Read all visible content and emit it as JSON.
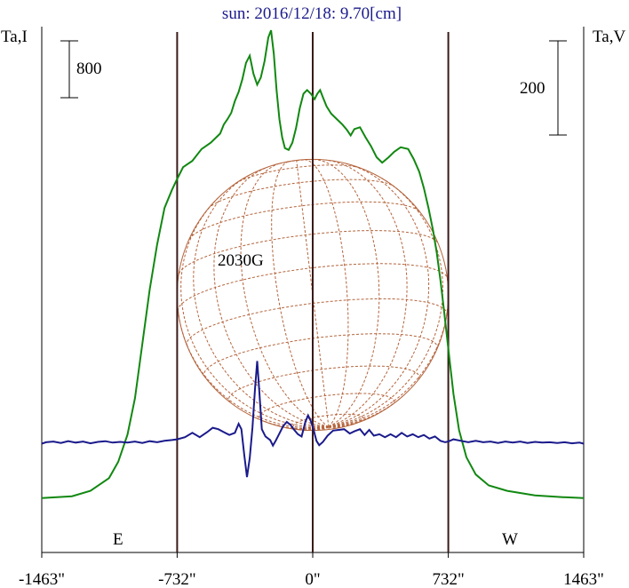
{
  "chart_data": {
    "type": "line",
    "title": "sun: 2016/12/18: 9.70[cm]",
    "left_axis_label": "Ta,I",
    "right_axis_label": "Ta,V",
    "left_scale_bar_label": "800",
    "right_scale_bar_label": "200",
    "annotation": "2030G",
    "east_label": "E",
    "west_label": "W",
    "xlim": [
      -1463,
      1463
    ],
    "x_ticks": [
      {
        "value": -1463,
        "label": "-1463\""
      },
      {
        "value": -732,
        "label": "-732\""
      },
      {
        "value": 0,
        "label": "0\""
      },
      {
        "value": 732,
        "label": "732\""
      },
      {
        "value": 1463,
        "label": "1463\""
      }
    ],
    "limb_markers": [
      -732,
      0,
      732
    ],
    "solar_radius_arcsec": 732,
    "grid": false,
    "series": [
      {
        "axis": "left",
        "color": "#118811",
        "ylim": [
          -600,
          5200
        ],
        "points": [
          [
            -1463,
            0
          ],
          [
            -1300,
            20
          ],
          [
            -1200,
            80
          ],
          [
            -1100,
            220
          ],
          [
            -1050,
            400
          ],
          [
            -1000,
            700
          ],
          [
            -960,
            1100
          ],
          [
            -920,
            1700
          ],
          [
            -880,
            2300
          ],
          [
            -840,
            2800
          ],
          [
            -800,
            3200
          ],
          [
            -760,
            3400
          ],
          [
            -732,
            3520
          ],
          [
            -700,
            3650
          ],
          [
            -650,
            3720
          ],
          [
            -600,
            3850
          ],
          [
            -550,
            3920
          ],
          [
            -500,
            4020
          ],
          [
            -480,
            4120
          ],
          [
            -460,
            4180
          ],
          [
            -440,
            4250
          ],
          [
            -420,
            4380
          ],
          [
            -400,
            4480
          ],
          [
            -380,
            4620
          ],
          [
            -360,
            4800
          ],
          [
            -340,
            4880
          ],
          [
            -320,
            4680
          ],
          [
            -300,
            4560
          ],
          [
            -280,
            4640
          ],
          [
            -260,
            4820
          ],
          [
            -240,
            5080
          ],
          [
            -225,
            5160
          ],
          [
            -210,
            4900
          ],
          [
            -195,
            4500
          ],
          [
            -180,
            4180
          ],
          [
            -165,
            3980
          ],
          [
            -150,
            3860
          ],
          [
            -130,
            3840
          ],
          [
            -110,
            3920
          ],
          [
            -90,
            4080
          ],
          [
            -70,
            4300
          ],
          [
            -50,
            4460
          ],
          [
            -30,
            4500
          ],
          [
            -10,
            4460
          ],
          [
            10,
            4400
          ],
          [
            25,
            4460
          ],
          [
            40,
            4500
          ],
          [
            55,
            4420
          ],
          [
            75,
            4320
          ],
          [
            100,
            4240
          ],
          [
            130,
            4180
          ],
          [
            160,
            4120
          ],
          [
            185,
            4060
          ],
          [
            205,
            4000
          ],
          [
            225,
            4070
          ],
          [
            255,
            4090
          ],
          [
            285,
            3980
          ],
          [
            315,
            3880
          ],
          [
            345,
            3760
          ],
          [
            375,
            3700
          ],
          [
            410,
            3760
          ],
          [
            440,
            3820
          ],
          [
            475,
            3870
          ],
          [
            515,
            3850
          ],
          [
            545,
            3740
          ],
          [
            575,
            3600
          ],
          [
            600,
            3420
          ],
          [
            625,
            3200
          ],
          [
            650,
            2950
          ],
          [
            670,
            2700
          ],
          [
            690,
            2400
          ],
          [
            710,
            2050
          ],
          [
            732,
            1650
          ],
          [
            760,
            1150
          ],
          [
            790,
            750
          ],
          [
            830,
            450
          ],
          [
            880,
            260
          ],
          [
            950,
            140
          ],
          [
            1050,
            80
          ],
          [
            1200,
            30
          ],
          [
            1350,
            10
          ],
          [
            1463,
            0
          ]
        ]
      },
      {
        "axis": "right",
        "color": "#1a1a8c",
        "ylim": [
          -300,
          1150
        ],
        "points": [
          [
            -1463,
            0
          ],
          [
            -1440,
            4
          ],
          [
            -1400,
            6
          ],
          [
            -1360,
            2
          ],
          [
            -1320,
            7
          ],
          [
            -1280,
            3
          ],
          [
            -1240,
            6
          ],
          [
            -1200,
            1
          ],
          [
            -1160,
            5
          ],
          [
            -1120,
            7
          ],
          [
            -1080,
            3
          ],
          [
            -1040,
            5
          ],
          [
            -1000,
            3
          ],
          [
            -960,
            6
          ],
          [
            -920,
            2
          ],
          [
            -880,
            7
          ],
          [
            -840,
            4
          ],
          [
            -800,
            8
          ],
          [
            -760,
            10
          ],
          [
            -732,
            12
          ],
          [
            -690,
            18
          ],
          [
            -650,
            30
          ],
          [
            -610,
            18
          ],
          [
            -570,
            32
          ],
          [
            -540,
            44
          ],
          [
            -510,
            40
          ],
          [
            -480,
            32
          ],
          [
            -450,
            24
          ],
          [
            -420,
            30
          ],
          [
            -400,
            55
          ],
          [
            -385,
            40
          ],
          [
            -370,
            -30
          ],
          [
            -355,
            -92
          ],
          [
            -340,
            -40
          ],
          [
            -325,
            45
          ],
          [
            -312,
            150
          ],
          [
            -300,
            228
          ],
          [
            -288,
            140
          ],
          [
            -275,
            40
          ],
          [
            -255,
            20
          ],
          [
            -230,
            10
          ],
          [
            -215,
            -5
          ],
          [
            -200,
            8
          ],
          [
            -180,
            28
          ],
          [
            -160,
            48
          ],
          [
            -140,
            60
          ],
          [
            -120,
            52
          ],
          [
            -100,
            38
          ],
          [
            -80,
            26
          ],
          [
            -60,
            20
          ],
          [
            -40,
            60
          ],
          [
            -25,
            78
          ],
          [
            -10,
            62
          ],
          [
            5,
            38
          ],
          [
            20,
            8
          ],
          [
            35,
            -4
          ],
          [
            55,
            5
          ],
          [
            80,
            22
          ],
          [
            110,
            36
          ],
          [
            140,
            38
          ],
          [
            170,
            40
          ],
          [
            200,
            28
          ],
          [
            225,
            34
          ],
          [
            255,
            40
          ],
          [
            280,
            24
          ],
          [
            305,
            38
          ],
          [
            330,
            22
          ],
          [
            360,
            26
          ],
          [
            390,
            18
          ],
          [
            420,
            26
          ],
          [
            450,
            18
          ],
          [
            480,
            30
          ],
          [
            510,
            20
          ],
          [
            540,
            26
          ],
          [
            570,
            18
          ],
          [
            600,
            24
          ],
          [
            630,
            14
          ],
          [
            660,
            20
          ],
          [
            690,
            8
          ],
          [
            715,
            4
          ],
          [
            732,
            6
          ],
          [
            760,
            12
          ],
          [
            800,
            8
          ],
          [
            840,
            4
          ],
          [
            880,
            8
          ],
          [
            920,
            4
          ],
          [
            960,
            6
          ],
          [
            1000,
            2
          ],
          [
            1040,
            6
          ],
          [
            1080,
            3
          ],
          [
            1120,
            6
          ],
          [
            1160,
            2
          ],
          [
            1200,
            5
          ],
          [
            1240,
            3
          ],
          [
            1280,
            4
          ],
          [
            1320,
            2
          ],
          [
            1360,
            4
          ],
          [
            1400,
            1
          ],
          [
            1440,
            3
          ],
          [
            1463,
            0
          ]
        ]
      }
    ],
    "left_scale_bar_value": 800,
    "right_scale_bar_value": 200
  },
  "colors": {
    "axis": "#000000",
    "limb_line": "#3a1a1a",
    "disk_grid": "#b4643c",
    "title": "#1a1a8c"
  }
}
